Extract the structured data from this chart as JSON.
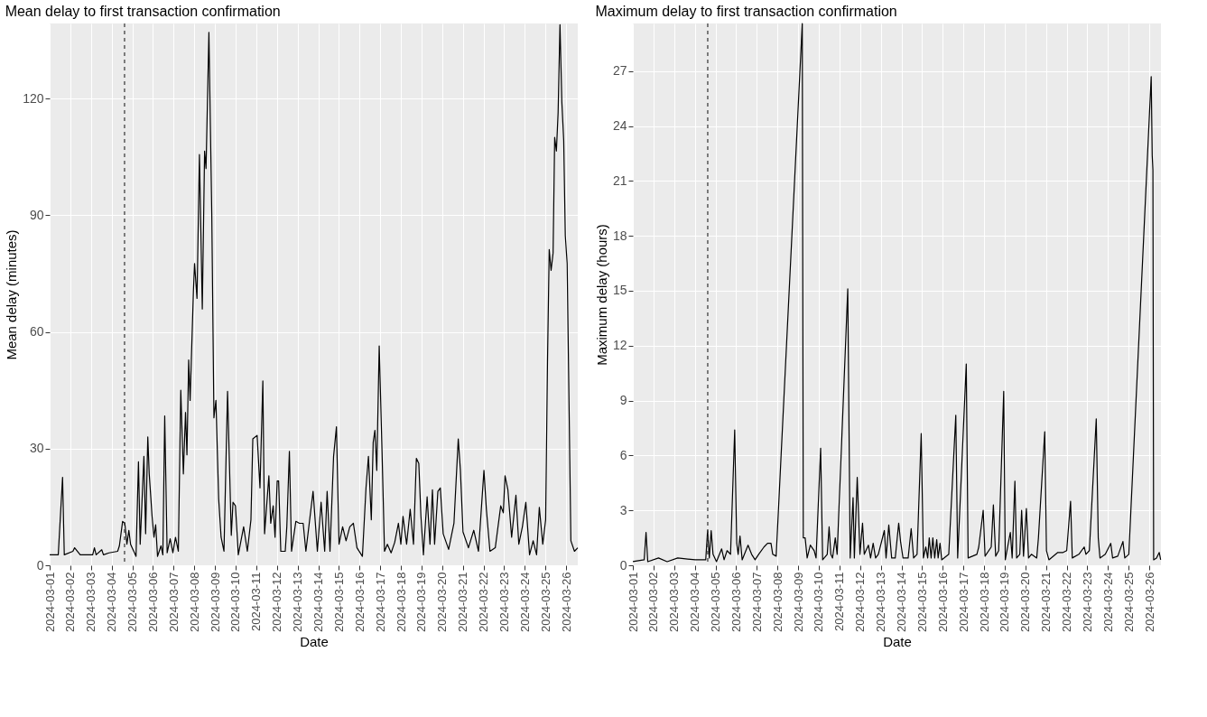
{
  "chart_data": [
    {
      "type": "line",
      "title": "Mean delay to first transaction confirmation",
      "xlabel": "Date",
      "ylabel": "Mean delay (minutes)",
      "x": [
        "2024-03-01T00:00",
        "2024-03-01T10:00",
        "2024-03-01T15:00",
        "2024-03-01T17:00",
        "2024-03-02T03:00",
        "2024-03-02T05:00",
        "2024-03-02T11:30",
        "2024-03-03T02:00",
        "2024-03-03T04:00",
        "2024-03-03T06:00",
        "2024-03-03T12:30",
        "2024-03-03T14:30",
        "2024-03-03T21:00",
        "2024-03-04T07:00",
        "2024-03-04T09:00",
        "2024-03-04T12:45",
        "2024-03-04T15:20",
        "2024-03-04T17:45",
        "2024-03-04T20:00",
        "2024-03-04T22:00",
        "2024-03-05T04:20",
        "2024-03-05T07:10",
        "2024-03-05T09:10",
        "2024-03-05T13:30",
        "2024-03-05T15:30",
        "2024-03-05T18:00",
        "2024-03-05T19:40",
        "2024-03-05T23:00",
        "2024-03-06T01:10",
        "2024-03-06T03:10",
        "2024-03-06T05:20",
        "2024-03-06T09:20",
        "2024-03-06T11:30",
        "2024-03-06T13:40",
        "2024-03-06T16:30",
        "2024-03-06T20:00",
        "2024-03-06T23:10",
        "2024-03-07T02:10",
        "2024-03-07T05:30",
        "2024-03-07T08:20",
        "2024-03-07T11:20",
        "2024-03-07T13:50",
        "2024-03-07T15:30",
        "2024-03-07T17:30",
        "2024-03-07T19:10",
        "2024-03-07T23:00",
        "2024-03-08T00:20",
        "2024-03-08T03:10",
        "2024-03-08T06:00",
        "2024-03-08T09:20",
        "2024-03-08T12:00",
        "2024-03-08T13:40",
        "2024-03-08T17:00",
        "2024-03-08T20:20",
        "2024-03-08T22:50",
        "2024-03-09T01:10",
        "2024-03-09T04:20",
        "2024-03-09T07:10",
        "2024-03-09T10:30",
        "2024-03-09T14:40",
        "2024-03-09T19:00",
        "2024-03-09T21:00",
        "2024-03-09T23:50",
        "2024-03-10T03:10",
        "2024-03-10T09:20",
        "2024-03-10T13:40",
        "2024-03-10T17:50",
        "2024-03-10T20:00",
        "2024-03-11T01:00",
        "2024-03-11T04:20",
        "2024-03-11T07:40",
        "2024-03-11T09:40",
        "2024-03-11T14:40",
        "2024-03-11T16:50",
        "2024-03-11T19:40",
        "2024-03-11T21:50",
        "2024-03-12T00:20",
        "2024-03-12T02:00",
        "2024-03-12T04:30",
        "2024-03-12T09:40",
        "2024-03-12T11:30",
        "2024-03-12T14:30",
        "2024-03-12T17:00",
        "2024-03-12T22:00",
        "2024-03-13T02:10",
        "2024-03-13T06:30",
        "2024-03-13T09:40",
        "2024-03-13T18:00",
        "2024-03-13T23:00",
        "2024-03-14T03:20",
        "2024-03-14T07:30",
        "2024-03-14T10:20",
        "2024-03-14T13:40",
        "2024-03-14T17:50",
        "2024-03-14T21:10",
        "2024-03-15T00:10",
        "2024-03-15T04:20",
        "2024-03-15T08:20",
        "2024-03-15T12:40",
        "2024-03-15T16:50",
        "2024-03-15T21:00",
        "2024-03-16T03:20",
        "2024-03-16T07:30",
        "2024-03-16T10:20",
        "2024-03-16T13:40",
        "2024-03-16T15:50",
        "2024-03-16T17:50",
        "2024-03-16T20:00",
        "2024-03-16T22:50",
        "2024-03-17T02:10",
        "2024-03-17T05:00",
        "2024-03-17T08:20",
        "2024-03-17T12:40",
        "2024-03-17T16:50",
        "2024-03-17T21:10",
        "2024-03-18T00:00",
        "2024-03-18T02:30",
        "2024-03-18T06:40",
        "2024-03-18T10:50",
        "2024-03-18T14:40",
        "2024-03-18T18:00",
        "2024-03-18T20:50",
        "2024-03-18T23:20",
        "2024-03-19T02:10",
        "2024-03-19T06:30",
        "2024-03-19T09:50",
        "2024-03-19T12:40",
        "2024-03-19T15:10",
        "2024-03-19T19:00",
        "2024-03-19T21:50",
        "2024-03-20T01:10",
        "2024-03-20T07:30",
        "2024-03-20T13:40",
        "2024-03-20T18:40",
        "2024-03-20T21:10",
        "2024-03-21T00:10",
        "2024-03-21T06:30",
        "2024-03-21T12:40",
        "2024-03-21T18:10",
        "2024-03-21T21:10",
        "2024-03-22T00:30",
        "2024-03-22T03:20",
        "2024-03-22T07:30",
        "2024-03-22T13:40",
        "2024-03-22T20:00",
        "2024-03-22T23:00",
        "2024-03-23T01:00",
        "2024-03-23T04:20",
        "2024-03-23T08:40",
        "2024-03-23T13:40",
        "2024-03-23T17:00",
        "2024-03-23T21:10",
        "2024-03-24T01:10",
        "2024-03-24T05:30",
        "2024-03-24T09:40",
        "2024-03-24T13:40",
        "2024-03-24T16:50",
        "2024-03-24T20:50",
        "2024-03-25T00:10",
        "2024-03-25T02:20",
        "2024-03-25T04:20",
        "2024-03-25T06:30",
        "2024-03-25T08:50",
        "2024-03-25T10:40",
        "2024-03-25T12:40",
        "2024-03-25T14:40",
        "2024-03-25T16:50",
        "2024-03-25T19:00",
        "2024-03-25T21:10",
        "2024-03-25T23:00",
        "2024-03-26T01:10",
        "2024-03-26T05:30",
        "2024-03-26T09:40",
        "2024-03-26T13:30"
      ],
      "series": [
        {
          "color": "#000000",
          "values": [
            2.7,
            2.7,
            22.6,
            2.7,
            3.6,
            4.5,
            2.7,
            2.7,
            4.5,
            2.7,
            4,
            2.7,
            3.2,
            3.6,
            5,
            11.3,
            10.8,
            5.4,
            9,
            5.4,
            2.3,
            26.6,
            5.4,
            28,
            8.1,
            33,
            23.5,
            12.6,
            7.2,
            10.4,
            2.3,
            5,
            2.7,
            38.4,
            3.2,
            6.8,
            3.2,
            7.2,
            3.6,
            45,
            23.5,
            39.3,
            28.4,
            52.8,
            42.4,
            70.4,
            77.6,
            68.6,
            105.6,
            65.9,
            106.5,
            102,
            137,
            90.3,
            37.9,
            42.4,
            17.1,
            7.2,
            3.6,
            44.7,
            7.7,
            16.2,
            15.3,
            2.7,
            9.9,
            3.6,
            11.7,
            32.5,
            33.4,
            19.9,
            47.4,
            8.1,
            23,
            10.8,
            15.3,
            7.2,
            21.7,
            21.7,
            3.6,
            3.6,
            9.9,
            29.3,
            3.6,
            11.3,
            10.8,
            10.8,
            3.6,
            19,
            3.6,
            16.2,
            3.6,
            19,
            3.6,
            28,
            35.6,
            5.4,
            9.9,
            6.3,
            9.9,
            10.8,
            4.5,
            2.3,
            19.9,
            28,
            11.7,
            31.6,
            34.7,
            24.4,
            56.4,
            28.9,
            3.6,
            5.4,
            3.2,
            5.9,
            10.8,
            5.4,
            12.6,
            5.4,
            14.4,
            5.4,
            27.5,
            26.2,
            12.6,
            2.7,
            17.6,
            5.4,
            19.4,
            5.4,
            19,
            19.9,
            8.1,
            4.1,
            10.8,
            32.5,
            24.4,
            8.6,
            4.5,
            9,
            3.6,
            13.5,
            24.4,
            14.4,
            3.6,
            4.5,
            15.3,
            13.5,
            23,
            19.4,
            7.2,
            18,
            5.4,
            9.9,
            16.2,
            2.7,
            6.3,
            2.7,
            14.9,
            5.4,
            11.7,
            52.3,
            81.2,
            75.8,
            80.3,
            110,
            106.5,
            116.4,
            139,
            119.1,
            109.2,
            84.8,
            77.6,
            6.3,
            3.6,
            4.5
          ]
        }
      ],
      "xlim": [
        "2024-03-01T00:00",
        "2024-03-26T13:30"
      ],
      "xticks": [
        "2024-03-01",
        "2024-03-02",
        "2024-03-03",
        "2024-03-04",
        "2024-03-05",
        "2024-03-06",
        "2024-03-07",
        "2024-03-08",
        "2024-03-09",
        "2024-03-10",
        "2024-03-11",
        "2024-03-12",
        "2024-03-13",
        "2024-03-14",
        "2024-03-15",
        "2024-03-16",
        "2024-03-17",
        "2024-03-18",
        "2024-03-19",
        "2024-03-20",
        "2024-03-21",
        "2024-03-22",
        "2024-03-23",
        "2024-03-24",
        "2024-03-25",
        "2024-03-26"
      ],
      "ylim": [
        0,
        139.3
      ],
      "yticks": [
        0,
        30,
        60,
        90,
        120
      ],
      "grid": true,
      "line_style": "solid",
      "ref_lines": [
        {
          "axis": "x",
          "value": "2024-03-04T15:00",
          "color": "#333333",
          "line_style": "dashed"
        }
      ]
    },
    {
      "type": "line",
      "title": "Maximum delay to first transaction confirmation",
      "xlabel": "Date",
      "ylabel": "Maximum delay (hours)",
      "x": [
        "2024-03-01T00:00",
        "2024-03-01T13:10",
        "2024-03-01T15:20",
        "2024-03-01T17:20",
        "2024-03-02T05:50",
        "2024-03-02T15:50",
        "2024-03-03T04:10",
        "2024-03-04T00:30",
        "2024-03-04T12:40",
        "2024-03-04T14:50",
        "2024-03-04T16:50",
        "2024-03-04T19:00",
        "2024-03-04T21:10",
        "2024-03-05T01:10",
        "2024-03-05T07:10",
        "2024-03-05T10:00",
        "2024-03-05T13:30",
        "2024-03-05T17:30",
        "2024-03-05T22:20",
        "2024-03-06T00:40",
        "2024-03-06T02:20",
        "2024-03-06T04:30",
        "2024-03-06T07:00",
        "2024-03-06T13:50",
        "2024-03-06T18:00",
        "2024-03-06T22:00",
        "2024-03-07T02:10",
        "2024-03-07T08:20",
        "2024-03-07T12:30",
        "2024-03-07T16:30",
        "2024-03-07T18:30",
        "2024-03-07T22:30",
        "2024-03-09T04:50",
        "2024-03-09T06:00",
        "2024-03-09T08:10",
        "2024-03-09T10:30",
        "2024-03-09T14:10",
        "2024-03-09T18:40",
        "2024-03-09T20:50",
        "2024-03-10T02:10",
        "2024-03-10T04:30",
        "2024-03-10T09:50",
        "2024-03-10T12:00",
        "2024-03-10T14:00",
        "2024-03-10T16:00",
        "2024-03-10T19:10",
        "2024-03-10T21:20",
        "2024-03-11T09:40",
        "2024-03-11T12:30",
        "2024-03-11T15:50",
        "2024-03-11T17:20",
        "2024-03-11T20:40",
        "2024-03-11T23:50",
        "2024-03-12T02:50",
        "2024-03-12T04:50",
        "2024-03-12T09:40",
        "2024-03-12T12:10",
        "2024-03-12T15:10",
        "2024-03-12T18:00",
        "2024-03-12T21:10",
        "2024-03-13T04:10",
        "2024-03-13T06:10",
        "2024-03-13T09:20",
        "2024-03-13T12:40",
        "2024-03-13T16:50",
        "2024-03-13T20:50",
        "2024-03-13T23:00",
        "2024-03-14T01:50",
        "2024-03-14T07:50",
        "2024-03-14T11:20",
        "2024-03-14T14:10",
        "2024-03-14T18:10",
        "2024-03-14T23:00",
        "2024-03-15T01:30",
        "2024-03-15T04:20",
        "2024-03-15T06:30",
        "2024-03-15T08:20",
        "2024-03-15T10:30",
        "2024-03-15T12:30",
        "2024-03-15T14:40",
        "2024-03-15T17:00",
        "2024-03-15T18:40",
        "2024-03-15T20:50",
        "2024-03-15T22:50",
        "2024-03-16T07:00",
        "2024-03-16T15:10",
        "2024-03-16T17:20",
        "2024-03-17T03:20",
        "2024-03-17T05:30",
        "2024-03-17T15:40",
        "2024-03-17T17:50",
        "2024-03-17T23:00",
        "2024-03-18T01:10",
        "2024-03-18T08:20",
        "2024-03-18T10:50",
        "2024-03-18T13:30",
        "2024-03-18T17:00",
        "2024-03-18T22:50",
        "2024-03-19T00:40",
        "2024-03-19T06:30",
        "2024-03-19T08:40",
        "2024-03-19T11:50",
        "2024-03-19T13:50",
        "2024-03-19T17:30",
        "2024-03-19T19:40",
        "2024-03-19T21:50",
        "2024-03-20T01:10",
        "2024-03-20T03:40",
        "2024-03-20T07:00",
        "2024-03-20T13:10",
        "2024-03-20T15:10",
        "2024-03-20T22:30",
        "2024-03-21T00:30",
        "2024-03-21T03:20",
        "2024-03-21T13:40",
        "2024-03-21T19:50",
        "2024-03-22T00:00",
        "2024-03-22T04:30",
        "2024-03-22T06:30",
        "2024-03-22T14:10",
        "2024-03-22T20:20",
        "2024-03-22T22:20",
        "2024-03-23T02:20",
        "2024-03-23T10:20",
        "2024-03-23T12:40",
        "2024-03-23T14:40",
        "2024-03-23T20:50",
        "2024-03-24T03:10",
        "2024-03-24T05:20",
        "2024-03-24T11:20",
        "2024-03-24T17:20",
        "2024-03-24T19:30",
        "2024-03-25T00:10",
        "2024-03-26T02:10",
        "2024-03-26T03:20",
        "2024-03-26T04:10",
        "2024-03-26T05:00",
        "2024-03-26T08:20",
        "2024-03-26T11:30",
        "2024-03-26T13:10"
      ],
      "series": [
        {
          "color": "#000000",
          "values": [
            0.2,
            0.3,
            1.8,
            0.2,
            0.4,
            0.2,
            0.4,
            0.3,
            0.3,
            1.9,
            0.4,
            1.9,
            0.6,
            0.2,
            0.9,
            0.3,
            0.8,
            0.6,
            7.4,
            1.2,
            0.6,
            1.6,
            0.3,
            1.1,
            0.6,
            0.3,
            0.6,
            1,
            1.2,
            1.2,
            0.6,
            0.5,
            29.6,
            1.5,
            1.5,
            0.4,
            1.1,
            0.8,
            0.4,
            6.4,
            0.3,
            0.6,
            2.1,
            0.6,
            0.4,
            1.5,
            0.6,
            15.1,
            0.4,
            3.7,
            0.4,
            4.8,
            0.6,
            2.3,
            0.6,
            1.1,
            0.4,
            1.2,
            0.4,
            0.6,
            1.9,
            0.4,
            2.2,
            0.4,
            0.4,
            2.3,
            1.3,
            0.4,
            0.4,
            2,
            0.4,
            0.6,
            7.2,
            0.4,
            1,
            0.4,
            1.5,
            0.4,
            1.5,
            0.4,
            1.4,
            0.4,
            1.2,
            0.3,
            0.6,
            8.2,
            0.4,
            11,
            0.4,
            0.6,
            1,
            3,
            0.5,
            1,
            3.3,
            0.5,
            0.8,
            9.5,
            0.3,
            1.8,
            0.4,
            4.6,
            0.4,
            0.6,
            3,
            0.5,
            3.1,
            0.4,
            0.6,
            0.4,
            1.5,
            7.3,
            0.8,
            0.3,
            0.7,
            0.7,
            0.8,
            3.5,
            0.4,
            0.6,
            1,
            0.6,
            0.8,
            8,
            1.5,
            0.4,
            0.6,
            1.2,
            0.4,
            0.5,
            1.3,
            0.4,
            0.6,
            26.7,
            22.4,
            21.6,
            0.3,
            0.4,
            0.7,
            0.3
          ]
        }
      ],
      "xlim": [
        "2024-03-01T00:00",
        "2024-03-26T13:30"
      ],
      "xticks": [
        "2024-03-01",
        "2024-03-02",
        "2024-03-03",
        "2024-03-04",
        "2024-03-05",
        "2024-03-06",
        "2024-03-07",
        "2024-03-08",
        "2024-03-09",
        "2024-03-10",
        "2024-03-11",
        "2024-03-12",
        "2024-03-13",
        "2024-03-14",
        "2024-03-15",
        "2024-03-16",
        "2024-03-17",
        "2024-03-18",
        "2024-03-19",
        "2024-03-20",
        "2024-03-21",
        "2024-03-22",
        "2024-03-23",
        "2024-03-24",
        "2024-03-25",
        "2024-03-26"
      ],
      "ylim": [
        0,
        29.6
      ],
      "yticks": [
        0,
        3,
        6,
        9,
        12,
        15,
        18,
        21,
        24,
        27
      ],
      "grid": true,
      "line_style": "solid",
      "ref_lines": [
        {
          "axis": "x",
          "value": "2024-03-04T15:00",
          "color": "#333333",
          "line_style": "dashed"
        }
      ]
    }
  ]
}
